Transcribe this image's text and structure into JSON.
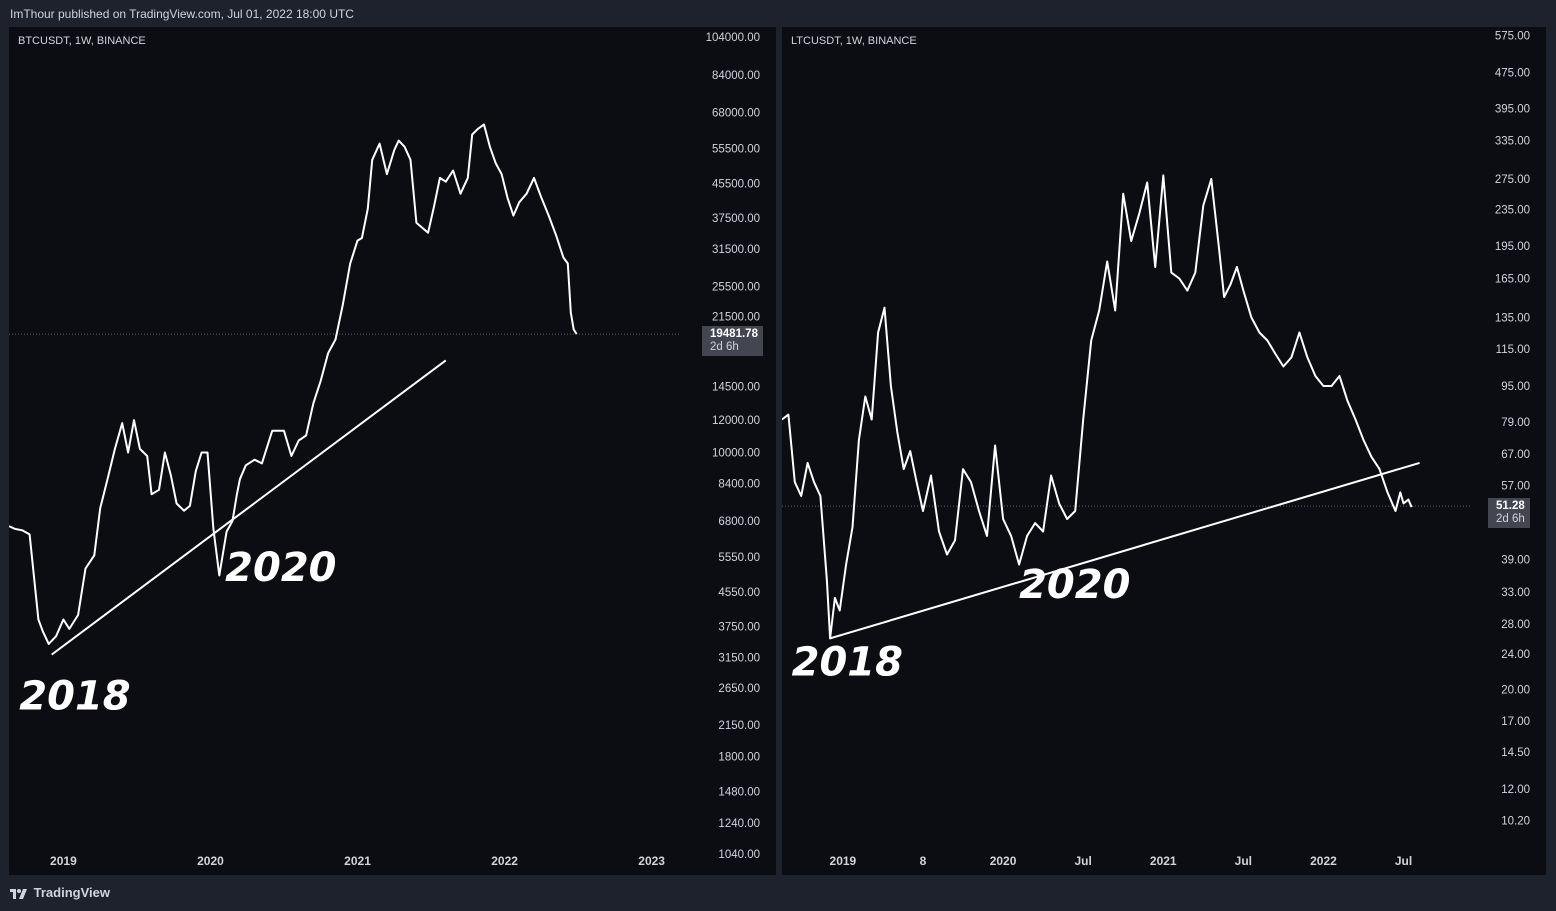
{
  "header": {
    "publisher": "ImThour published on TradingView.com, Jul 01, 2022 18:00 UTC"
  },
  "footer": {
    "logo_icon": "tradingview-logo-icon",
    "brand": "TradingView"
  },
  "colors": {
    "background": "#0c0d12",
    "frame": "#1e222d",
    "line": "#ffffff",
    "axis_text": "#d1d4dc",
    "price_tag": "#434651"
  },
  "chart_data": [
    {
      "type": "line",
      "symbol": "BTCUSDT, 1W, BINANCE",
      "scale": "log",
      "ylim": [
        1000,
        110000
      ],
      "y_ticks": [
        "104000.00",
        "84000.00",
        "68000.00",
        "55500.00",
        "45500.00",
        "37500.00",
        "31500.00",
        "25500.00",
        "21500.00",
        "14500.00",
        "12000.00",
        "10000.00",
        "8400.00",
        "6800.00",
        "5550.00",
        "4550.00",
        "3750.00",
        "3150.00",
        "2650.00",
        "2150.00",
        "1800.00",
        "1480.00",
        "1240.00",
        "1040.00"
      ],
      "x_ticks": [
        "2019",
        "2020",
        "2021",
        "2022",
        "2023"
      ],
      "x_tick_pos": [
        2019.0,
        2020.0,
        2021.0,
        2022.0,
        2023.0
      ],
      "xlim": [
        2018.63,
        2023.05
      ],
      "series": [
        {
          "x": [
            2018.63,
            2018.67,
            2018.72,
            2018.77,
            2018.83,
            2018.86,
            2018.9,
            2018.95,
            2019.0,
            2019.04,
            2019.1,
            2019.15,
            2019.21,
            2019.25,
            2019.3,
            2019.35,
            2019.4,
            2019.44,
            2019.48,
            2019.52,
            2019.57,
            2019.6,
            2019.65,
            2019.69,
            2019.73,
            2019.77,
            2019.82,
            2019.86,
            2019.9,
            2019.94,
            2019.98,
            2020.02,
            2020.06,
            2020.11,
            2020.15,
            2020.18,
            2020.2,
            2020.24,
            2020.3,
            2020.35,
            2020.42,
            2020.5,
            2020.55,
            2020.6,
            2020.65,
            2020.7,
            2020.75,
            2020.8,
            2020.85,
            2020.9,
            2020.95,
            2021.0,
            2021.03,
            2021.07,
            2021.1,
            2021.15,
            2021.2,
            2021.25,
            2021.28,
            2021.32,
            2021.36,
            2021.4,
            2021.44,
            2021.48,
            2021.52,
            2021.56,
            2021.6,
            2021.65,
            2021.7,
            2021.75,
            2021.78,
            2021.82,
            2021.86,
            2021.9,
            2021.94,
            2021.98,
            2022.02,
            2022.06,
            2022.1,
            2022.15,
            2022.2,
            2022.25,
            2022.3,
            2022.35,
            2022.4,
            2022.43,
            2022.45,
            2022.47,
            2022.49
          ],
          "values": [
            6600,
            6500,
            6450,
            6300,
            3900,
            3650,
            3400,
            3550,
            3900,
            3700,
            4000,
            5200,
            5600,
            7300,
            8600,
            10200,
            11800,
            10000,
            12000,
            10200,
            9800,
            7900,
            8100,
            10000,
            8800,
            7500,
            7200,
            7400,
            9000,
            10000,
            10000,
            6500,
            5000,
            6400,
            6800,
            7900,
            8600,
            9300,
            9600,
            9400,
            11300,
            11300,
            9800,
            10700,
            11000,
            13200,
            15000,
            17500,
            18900,
            23000,
            29000,
            33000,
            33500,
            39500,
            52000,
            57000,
            48000,
            55000,
            58000,
            56000,
            52000,
            36500,
            35500,
            34500,
            40000,
            47000,
            46000,
            49000,
            43000,
            47000,
            60000,
            62000,
            63500,
            56000,
            51000,
            48000,
            42000,
            38000,
            41000,
            43000,
            47000,
            42000,
            38000,
            34000,
            30000,
            29000,
            22000,
            20000,
            19500
          ]
        }
      ],
      "price_label": "19481.78",
      "countdown": "2d 6h",
      "trendline": {
        "x": [
          2018.92,
          2021.6
        ],
        "y": [
          3200,
          16800
        ]
      },
      "annotations": [
        {
          "text": "2018",
          "x": 2018.7,
          "y": 2350
        },
        {
          "text": "2020",
          "x": 2020.1,
          "y": 4850
        }
      ]
    },
    {
      "type": "line",
      "symbol": "LTCUSDT, 1W, BINANCE",
      "scale": "log",
      "ylim": [
        9,
        600
      ],
      "y_ticks": [
        "575.00",
        "475.00",
        "395.00",
        "335.00",
        "275.00",
        "235.00",
        "195.00",
        "165.00",
        "135.00",
        "115.00",
        "95.00",
        "79.00",
        "67.00",
        "57.00",
        "51.28",
        "39.00",
        "33.00",
        "28.00",
        "24.00",
        "20.00",
        "17.00",
        "14.50",
        "12.00",
        "10.20"
      ],
      "x_ticks": [
        "2019",
        "8",
        "2020",
        "Jul",
        "2021",
        "Jul",
        "2022",
        "Jul"
      ],
      "x_tick_pos": [
        2019.0,
        2019.5,
        2020.0,
        2020.5,
        2021.0,
        2021.5,
        2022.0,
        2022.5
      ],
      "xlim": [
        2018.62,
        2022.79
      ],
      "series": [
        {
          "x": [
            2018.62,
            2018.66,
            2018.7,
            2018.74,
            2018.78,
            2018.82,
            2018.86,
            2018.9,
            2018.92,
            2018.95,
            2018.98,
            2019.02,
            2019.06,
            2019.1,
            2019.14,
            2019.18,
            2019.22,
            2019.26,
            2019.3,
            2019.34,
            2019.38,
            2019.42,
            2019.46,
            2019.5,
            2019.55,
            2019.6,
            2019.65,
            2019.7,
            2019.75,
            2019.8,
            2019.85,
            2019.9,
            2019.95,
            2020.0,
            2020.05,
            2020.1,
            2020.15,
            2020.2,
            2020.25,
            2020.3,
            2020.35,
            2020.4,
            2020.45,
            2020.5,
            2020.55,
            2020.6,
            2020.65,
            2020.7,
            2020.75,
            2020.8,
            2020.85,
            2020.9,
            2020.95,
            2021.0,
            2021.05,
            2021.1,
            2021.15,
            2021.2,
            2021.25,
            2021.3,
            2021.35,
            2021.38,
            2021.42,
            2021.46,
            2021.5,
            2021.55,
            2021.6,
            2021.65,
            2021.7,
            2021.75,
            2021.8,
            2021.85,
            2021.9,
            2021.95,
            2022.0,
            2022.05,
            2022.1,
            2022.15,
            2022.2,
            2022.25,
            2022.3,
            2022.35,
            2022.4,
            2022.45,
            2022.48,
            2022.5,
            2022.53,
            2022.55
          ],
          "values": [
            80,
            82,
            58,
            54,
            64,
            58,
            54,
            35,
            26,
            32,
            30,
            38,
            46,
            72,
            90,
            80,
            125,
            142,
            95,
            75,
            62,
            68,
            58,
            50,
            60,
            45,
            40,
            43,
            62,
            58,
            50,
            44,
            70,
            48,
            44,
            38,
            44,
            47,
            45,
            60,
            52,
            48,
            50,
            80,
            120,
            140,
            180,
            140,
            255,
            200,
            230,
            270,
            175,
            280,
            170,
            165,
            155,
            170,
            240,
            275,
            190,
            150,
            160,
            175,
            155,
            135,
            125,
            120,
            112,
            105,
            110,
            125,
            110,
            100,
            95,
            95,
            100,
            88,
            80,
            72,
            66,
            62,
            55,
            50,
            55,
            52,
            53,
            51
          ]
        }
      ],
      "price_label": "51.28",
      "countdown": "2d 6h",
      "trendline": {
        "x": [
          2018.92,
          2022.6
        ],
        "y": [
          26,
          64
        ]
      },
      "annotations": [
        {
          "text": "2018",
          "x": 2018.68,
          "y": 21.5
        },
        {
          "text": "2020",
          "x": 2020.1,
          "y": 32
        }
      ]
    }
  ]
}
